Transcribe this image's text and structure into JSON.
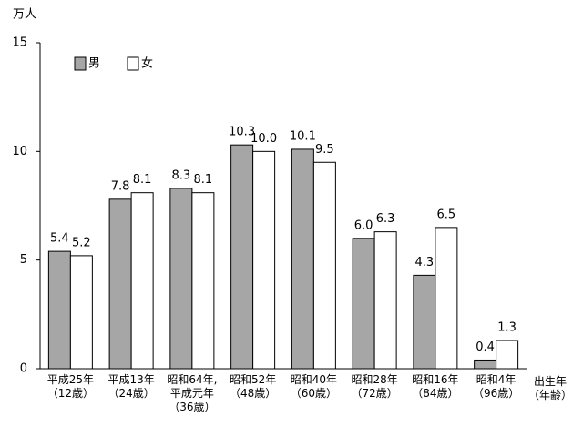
{
  "chart_data": {
    "type": "bar",
    "y_label": "万人",
    "x_label": [
      "出生年",
      "（年齢）"
    ],
    "categories": [
      [
        "平成25年",
        "（12歳）"
      ],
      [
        "平成13年",
        "（24歳）"
      ],
      [
        "昭和64年,",
        "平成元年",
        "（36歳）"
      ],
      [
        "昭和52年",
        "（48歳）"
      ],
      [
        "昭和40年",
        "（60歳）"
      ],
      [
        "昭和28年",
        "（72歳）"
      ],
      [
        "昭和16年",
        "（84歳）"
      ],
      [
        "昭和4年",
        "（96歳）"
      ]
    ],
    "series": [
      {
        "name": "男",
        "color": "#a6a6a6",
        "values": [
          5.4,
          7.8,
          8.3,
          10.3,
          10.1,
          6.0,
          4.3,
          0.4
        ],
        "value_labels": [
          "5.4",
          "7.8",
          "8.3",
          "10.3",
          "10.1",
          "6.0",
          "4.3",
          "0.4"
        ]
      },
      {
        "name": "女",
        "color": "#ffffff",
        "values": [
          5.2,
          8.1,
          8.1,
          10.0,
          9.5,
          6.3,
          6.5,
          1.3
        ],
        "value_labels": [
          "5.2",
          "8.1",
          "8.1",
          "10.0",
          "9.5",
          "6.3",
          "6.5",
          "1.3"
        ]
      }
    ],
    "ylim": [
      0,
      15
    ],
    "yticks": [
      0,
      5,
      10,
      15
    ],
    "grid": false,
    "legend": "upper left"
  }
}
